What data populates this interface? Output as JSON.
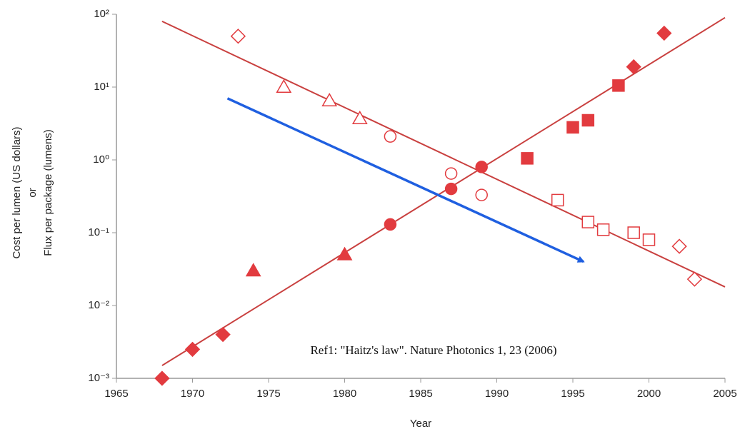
{
  "chart_data": {
    "type": "scatter",
    "xlabel": "Year",
    "ylabel": [
      "Cost per lumen (US dollars)",
      "or",
      "Flux per package (lumens)"
    ],
    "annotation": "Ref1: \"Haitz's law\". Nature Photonics 1, 23 (2006)",
    "log_y": true,
    "xlim": [
      1965,
      2005
    ],
    "ylim": [
      0.001,
      100
    ],
    "xticks": [
      1965,
      1970,
      1975,
      1980,
      1985,
      1990,
      1995,
      2000,
      2005
    ],
    "yticks": [
      {
        "value": 100,
        "label": "10²"
      },
      {
        "value": 10,
        "label": "10¹"
      },
      {
        "value": 1,
        "label": "10⁰"
      },
      {
        "value": 0.1,
        "label": "10⁻¹"
      },
      {
        "value": 0.01,
        "label": "10⁻²"
      },
      {
        "value": 0.001,
        "label": "10⁻³"
      }
    ],
    "series": [
      {
        "marker": "diamond",
        "filled": true,
        "color": "#e23b3f",
        "x": [
          1968,
          1970,
          1972,
          1999,
          2001
        ],
        "values": [
          0.001,
          0.0025,
          0.004,
          19,
          55
        ]
      },
      {
        "marker": "triangle",
        "filled": true,
        "color": "#e23b3f",
        "x": [
          1974,
          1980
        ],
        "values": [
          0.03,
          0.05
        ]
      },
      {
        "marker": "circle",
        "filled": true,
        "color": "#e23b3f",
        "x": [
          1983,
          1987,
          1989
        ],
        "values": [
          0.13,
          0.4,
          0.8
        ]
      },
      {
        "marker": "square",
        "filled": true,
        "color": "#e23b3f",
        "x": [
          1992,
          1995,
          1996,
          1998
        ],
        "values": [
          1.05,
          2.8,
          3.5,
          10.5
        ]
      },
      {
        "marker": "diamond",
        "filled": false,
        "color": "#e23b3f",
        "x": [
          1973,
          2002,
          2003
        ],
        "values": [
          50,
          0.065,
          0.023
        ]
      },
      {
        "marker": "triangle",
        "filled": false,
        "color": "#e23b3f",
        "x": [
          1976,
          1979,
          1981
        ],
        "values": [
          10,
          6.5,
          3.7
        ]
      },
      {
        "marker": "circle",
        "filled": false,
        "color": "#e23b3f",
        "x": [
          1983,
          1987,
          1989
        ],
        "values": [
          2.1,
          0.65,
          0.33
        ]
      },
      {
        "marker": "square",
        "filled": false,
        "color": "#e23b3f",
        "x": [
          1994,
          1996,
          1997,
          1999,
          2000
        ],
        "values": [
          0.28,
          0.14,
          0.11,
          0.1,
          0.08
        ]
      }
    ],
    "lines": [
      {
        "color": "#c9403f",
        "x": [
          1968,
          2005
        ],
        "values": [
          0.0015,
          90
        ]
      },
      {
        "color": "#c9403f",
        "x": [
          1968,
          2005
        ],
        "values": [
          80,
          0.018
        ]
      }
    ],
    "arrow": {
      "color": "#1f5fe0",
      "x": [
        1972.3,
        1995.7
      ],
      "values": [
        7,
        0.04
      ]
    }
  }
}
